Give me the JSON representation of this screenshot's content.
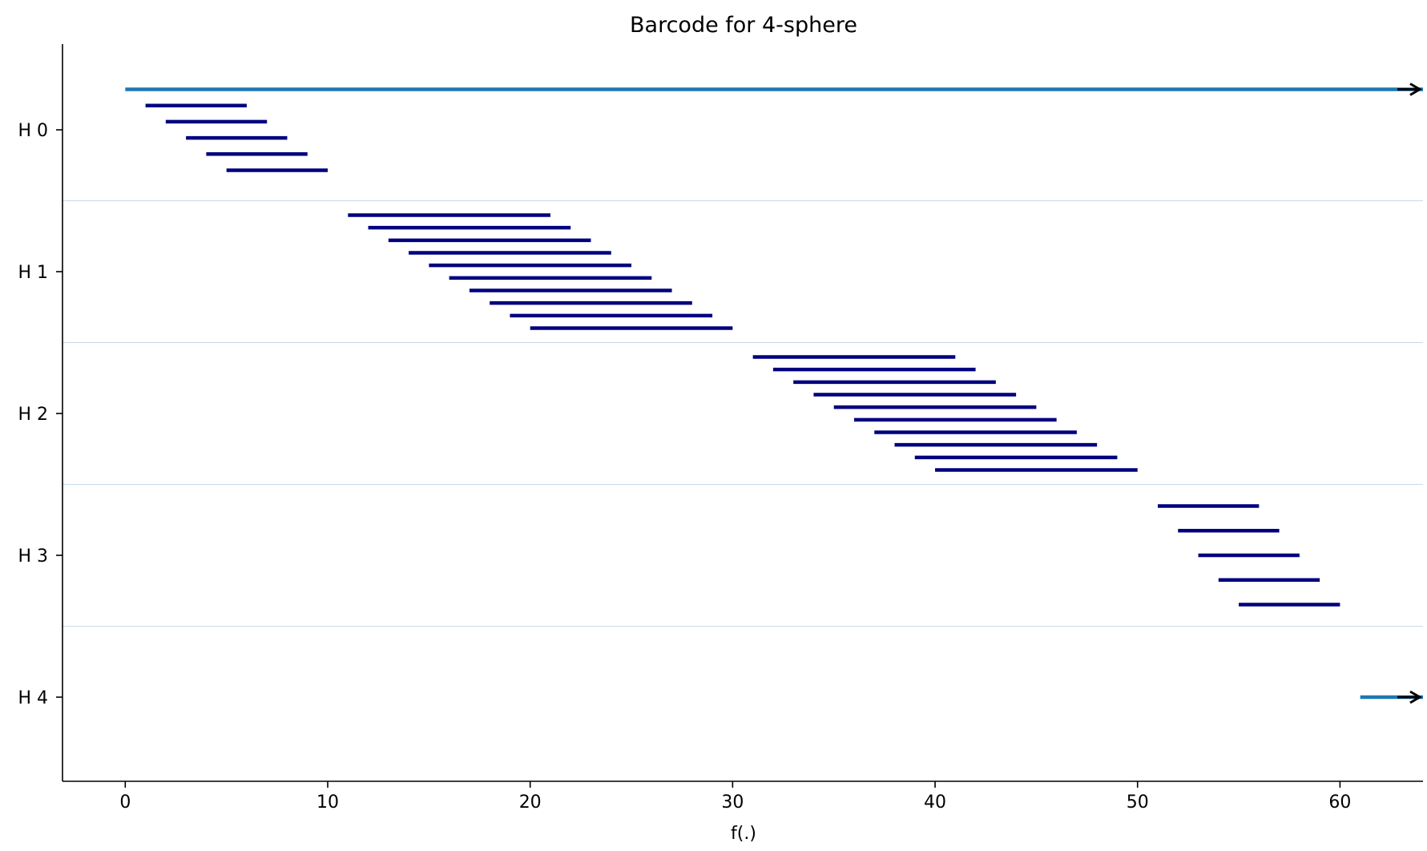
{
  "chart_data": {
    "type": "barcode",
    "title": "Barcode for 4-sphere",
    "xlabel": "f(.)",
    "ylabel": "",
    "xlim": [
      -3.1,
      64.1
    ],
    "xticks": [
      0,
      10,
      20,
      30,
      40,
      50,
      60
    ],
    "grid": false,
    "colors": {
      "finite": "#00007f",
      "infinite": "#1f77b4",
      "arrow": "#000000",
      "separator": "#c6dbea",
      "axis": "#000000"
    },
    "groups": [
      {
        "name": "H 0",
        "bars": [
          {
            "birth": 0,
            "death": null
          },
          {
            "birth": 1,
            "death": 6
          },
          {
            "birth": 2,
            "death": 7
          },
          {
            "birth": 3,
            "death": 8
          },
          {
            "birth": 4,
            "death": 9
          },
          {
            "birth": 5,
            "death": 10
          }
        ]
      },
      {
        "name": "H 1",
        "bars": [
          {
            "birth": 11,
            "death": 21
          },
          {
            "birth": 12,
            "death": 22
          },
          {
            "birth": 13,
            "death": 23
          },
          {
            "birth": 14,
            "death": 24
          },
          {
            "birth": 15,
            "death": 25
          },
          {
            "birth": 16,
            "death": 26
          },
          {
            "birth": 17,
            "death": 27
          },
          {
            "birth": 18,
            "death": 28
          },
          {
            "birth": 19,
            "death": 29
          },
          {
            "birth": 20,
            "death": 30
          }
        ]
      },
      {
        "name": "H 2",
        "bars": [
          {
            "birth": 31,
            "death": 41
          },
          {
            "birth": 32,
            "death": 42
          },
          {
            "birth": 33,
            "death": 43
          },
          {
            "birth": 34,
            "death": 44
          },
          {
            "birth": 35,
            "death": 45
          },
          {
            "birth": 36,
            "death": 46
          },
          {
            "birth": 37,
            "death": 47
          },
          {
            "birth": 38,
            "death": 48
          },
          {
            "birth": 39,
            "death": 49
          },
          {
            "birth": 40,
            "death": 50
          }
        ]
      },
      {
        "name": "H 3",
        "bars": [
          {
            "birth": 51,
            "death": 56
          },
          {
            "birth": 52,
            "death": 57
          },
          {
            "birth": 53,
            "death": 58
          },
          {
            "birth": 54,
            "death": 59
          },
          {
            "birth": 55,
            "death": 60
          }
        ]
      },
      {
        "name": "H 4",
        "bars": [
          {
            "birth": 61,
            "death": null
          }
        ]
      }
    ]
  }
}
